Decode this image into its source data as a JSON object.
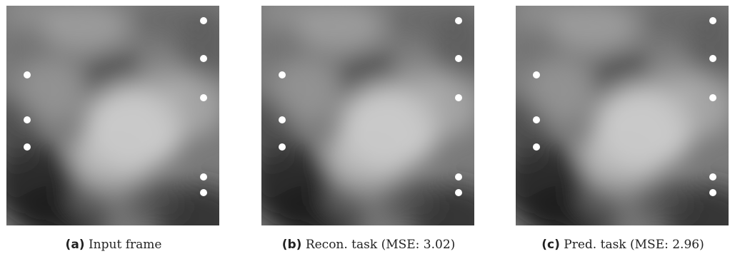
{
  "panels": [
    {
      "tag": "(a)",
      "caption": "Input frame"
    },
    {
      "tag": "(b)",
      "caption": "Recon. task (MSE: 3.02)"
    },
    {
      "tag": "(c)",
      "caption": "Pred. task (MSE: 2.96)"
    }
  ],
  "image": {
    "subject": "grayscale cloud-like noise field with white point markers",
    "marker_color": "#ffffff",
    "marker_count": 8
  }
}
